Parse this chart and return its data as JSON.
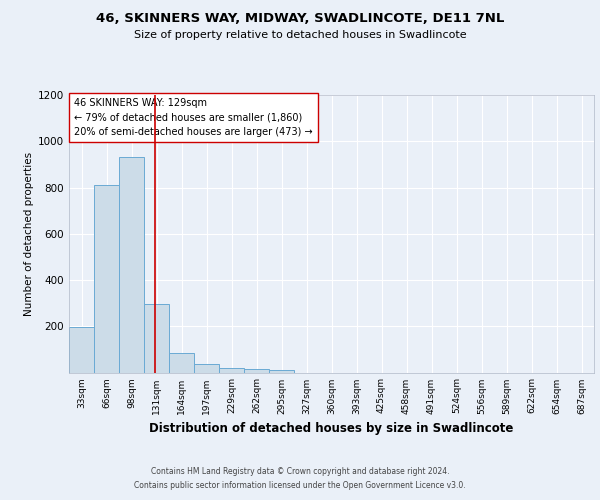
{
  "title": "46, SKINNERS WAY, MIDWAY, SWADLINCOTE, DE11 7NL",
  "subtitle": "Size of property relative to detached houses in Swadlincote",
  "xlabel": "Distribution of detached houses by size in Swadlincote",
  "ylabel": "Number of detached properties",
  "bin_labels": [
    "33sqm",
    "66sqm",
    "98sqm",
    "131sqm",
    "164sqm",
    "197sqm",
    "229sqm",
    "262sqm",
    "295sqm",
    "327sqm",
    "360sqm",
    "393sqm",
    "425sqm",
    "458sqm",
    "491sqm",
    "524sqm",
    "556sqm",
    "589sqm",
    "622sqm",
    "654sqm",
    "687sqm"
  ],
  "bin_values": [
    195,
    810,
    930,
    295,
    85,
    38,
    18,
    15,
    10,
    0,
    0,
    0,
    0,
    0,
    0,
    0,
    0,
    0,
    0,
    0,
    0
  ],
  "bar_color": "#ccdce8",
  "bar_edge_color": "#6aaad4",
  "property_line_x": 2.94,
  "property_line_color": "#cc0000",
  "annotation_text": "46 SKINNERS WAY: 129sqm\n← 79% of detached houses are smaller (1,860)\n20% of semi-detached houses are larger (473) →",
  "annotation_box_color": "#ffffff",
  "annotation_box_edge_color": "#cc0000",
  "ylim": [
    0,
    1200
  ],
  "yticks": [
    0,
    200,
    400,
    600,
    800,
    1000,
    1200
  ],
  "background_color": "#eaf0f8",
  "plot_background": "#eaf0f8",
  "grid_color": "#ffffff",
  "footer_line1": "Contains HM Land Registry data © Crown copyright and database right 2024.",
  "footer_line2": "Contains public sector information licensed under the Open Government Licence v3.0."
}
